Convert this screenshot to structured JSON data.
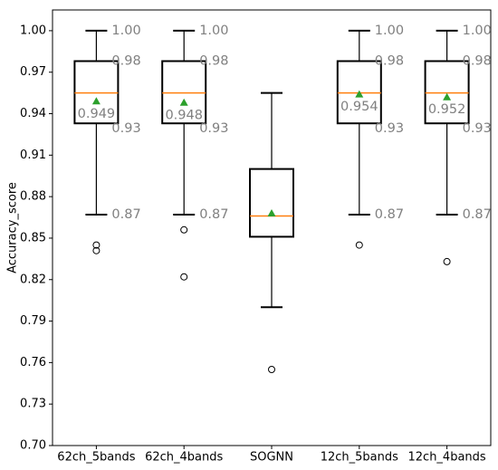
{
  "chart_data": {
    "type": "box",
    "title": "",
    "xlabel": "",
    "ylabel": "Accuracy_score",
    "ylim": [
      0.7,
      1.015
    ],
    "yticks": [
      "0.70",
      "0.73",
      "0.76",
      "0.79",
      "0.82",
      "0.85",
      "0.88",
      "0.91",
      "0.94",
      "0.97",
      "1.00"
    ],
    "grid": false,
    "categories": [
      "62ch_5bands",
      "62ch_4bands",
      "SOGNN",
      "12ch_5bands",
      "12ch_4bands"
    ],
    "boxes": [
      {
        "whisker_low": 0.867,
        "q1": 0.933,
        "median": 0.955,
        "q3": 0.978,
        "whisker_high": 1.0,
        "mean": 0.949,
        "outliers": [
          0.845,
          0.841
        ]
      },
      {
        "whisker_low": 0.867,
        "q1": 0.933,
        "median": 0.955,
        "q3": 0.978,
        "whisker_high": 1.0,
        "mean": 0.948,
        "outliers": [
          0.856,
          0.822
        ]
      },
      {
        "whisker_low": 0.8,
        "q1": 0.851,
        "median": 0.866,
        "q3": 0.9,
        "whisker_high": 0.955,
        "mean": 0.868,
        "outliers": [
          0.755
        ]
      },
      {
        "whisker_low": 0.867,
        "q1": 0.933,
        "median": 0.955,
        "q3": 0.978,
        "whisker_high": 1.0,
        "mean": 0.954,
        "outliers": [
          0.845
        ]
      },
      {
        "whisker_low": 0.867,
        "q1": 0.933,
        "median": 0.955,
        "q3": 0.978,
        "whisker_high": 1.0,
        "mean": 0.952,
        "outliers": [
          0.833
        ]
      }
    ],
    "annotations": [
      {
        "box": 0,
        "labels": [
          "1.00",
          "0.98",
          "0.93",
          "0.87"
        ],
        "mean_label": "0.949"
      },
      {
        "box": 1,
        "labels": [
          "1.00",
          "0.98",
          "0.93",
          "0.87"
        ],
        "mean_label": "0.948"
      },
      {
        "box": 3,
        "labels": [
          "1.00",
          "0.98",
          "0.93",
          "0.87"
        ],
        "mean_label": "0.954"
      },
      {
        "box": 4,
        "labels": [
          "1.00",
          "0.98",
          "0.93",
          "0.87"
        ],
        "mean_label": "0.952"
      }
    ],
    "colors": {
      "median": "#ff7f0e",
      "mean_marker": "#2ca02c",
      "annotation": "#808080",
      "box": "#000000"
    }
  }
}
